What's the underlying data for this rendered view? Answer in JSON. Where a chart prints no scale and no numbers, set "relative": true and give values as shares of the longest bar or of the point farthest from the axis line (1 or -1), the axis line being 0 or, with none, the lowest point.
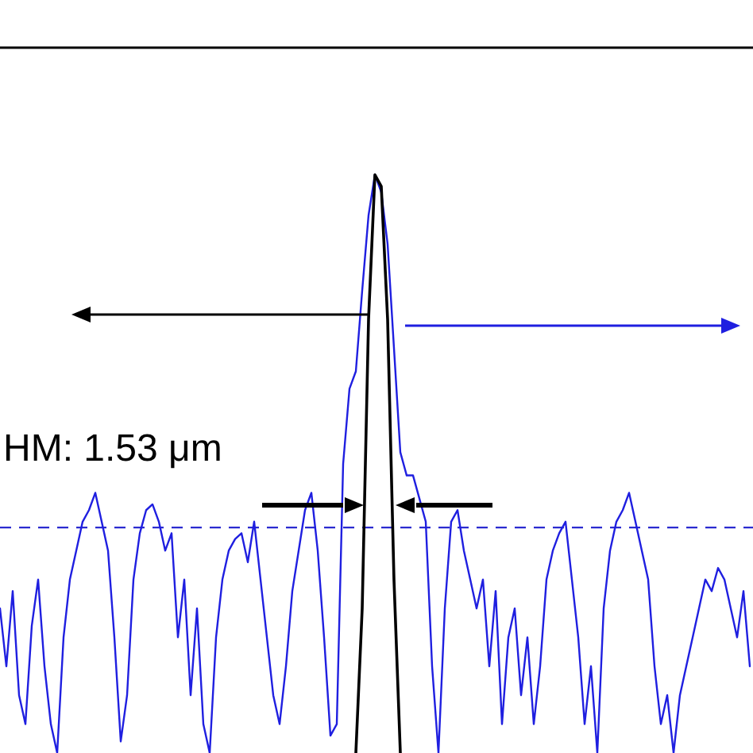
{
  "chart_data": {
    "type": "line",
    "relative": true,
    "annotations": [
      "HM: 1.53 μm"
    ],
    "categories": [
      null,
      null,
      null,
      null,
      null,
      null,
      null,
      null,
      null,
      null,
      null,
      null,
      null,
      null,
      null,
      null,
      null,
      null,
      null,
      null,
      null,
      null,
      null,
      null,
      null,
      null,
      null,
      null,
      null,
      null,
      null,
      null,
      null,
      null,
      null,
      null,
      null,
      null,
      null,
      null,
      null,
      null,
      null,
      null,
      null,
      null,
      null,
      null,
      null,
      null,
      null,
      null,
      null,
      null,
      null,
      null,
      null,
      null,
      null,
      null,
      null,
      null,
      null,
      null,
      null,
      null,
      null,
      null,
      null,
      null,
      null,
      null,
      null,
      null,
      null,
      null,
      null,
      null,
      null,
      null,
      null,
      null,
      null,
      null,
      null,
      null,
      null,
      null,
      null,
      null,
      null,
      null,
      null,
      null,
      null,
      null,
      null,
      null,
      null,
      null,
      null,
      null,
      null,
      null,
      null,
      null,
      null,
      null,
      null,
      null,
      null,
      null,
      null,
      null,
      null,
      null,
      null,
      null,
      null
    ],
    "ref_lines": [
      {
        "axis": "y",
        "value": 0.39,
        "color": "#2b2bd0",
        "line_style": "dashed"
      }
    ],
    "series": [
      {
        "color": "#1f1fe0",
        "values": [
          0.25,
          0.15,
          0.28,
          0.1,
          0.05,
          0.22,
          0.3,
          0.15,
          0.05,
          0,
          0.2,
          0.3,
          0.35,
          0.4,
          0.42,
          0.45,
          0.4,
          0.35,
          0.2,
          0.02,
          0.1,
          0.3,
          0.38,
          0.42,
          0.43,
          0.4,
          0.35,
          0.38,
          0.2,
          0.3,
          0.1,
          0.25,
          0.05,
          0,
          0.2,
          0.3,
          0.35,
          0.37,
          0.38,
          0.33,
          0.4,
          0.3,
          0.2,
          0.1,
          0.05,
          0.15,
          0.28,
          0.35,
          0.42,
          0.45,
          0.35,
          0.2,
          0.03,
          0.05,
          0.5,
          0.63,
          0.66,
          0.8,
          0.93,
          1,
          0.97,
          0.88,
          0.7,
          0.52,
          0.48,
          0.48,
          0.44,
          0.4,
          0.15,
          0,
          0.25,
          0.4,
          0.42,
          0.35,
          0.3,
          0.25,
          0.3,
          0.15,
          0.28,
          0.05,
          0.2,
          0.25,
          0.1,
          0.2,
          0.05,
          0.15,
          0.3,
          0.35,
          0.38,
          0.4,
          0.3,
          0.2,
          0.05,
          0.15,
          0,
          0.25,
          0.35,
          0.4,
          0.42,
          0.45,
          0.4,
          0.35,
          0.3,
          0.15,
          0.05,
          0.1,
          0,
          0.1,
          0.15,
          0.2,
          0.25,
          0.3,
          0.28,
          0.32,
          0.3,
          0.25,
          0.2,
          0.28,
          0.15
        ]
      },
      {
        "color": "#000000",
        "values": [
          null,
          null,
          null,
          null,
          null,
          null,
          null,
          null,
          null,
          null,
          null,
          null,
          null,
          null,
          null,
          null,
          null,
          null,
          null,
          null,
          null,
          null,
          null,
          null,
          null,
          null,
          null,
          null,
          null,
          null,
          null,
          null,
          null,
          null,
          null,
          null,
          null,
          null,
          null,
          null,
          null,
          null,
          null,
          null,
          null,
          null,
          null,
          null,
          null,
          null,
          null,
          null,
          null,
          null,
          null,
          null,
          0,
          0.25,
          0.75,
          1,
          0.98,
          0.75,
          0.3,
          0,
          null,
          null,
          null,
          null,
          null,
          null,
          null,
          null,
          null,
          null,
          null,
          null,
          null,
          null,
          null,
          null,
          null,
          null,
          null,
          null,
          null,
          null,
          null,
          null,
          null,
          null,
          null,
          null,
          null,
          null,
          null,
          null,
          null,
          null,
          null,
          null,
          null,
          null,
          null,
          null,
          null,
          null,
          null,
          null,
          null,
          null,
          null,
          null,
          null,
          null,
          null,
          null,
          null,
          null,
          null
        ]
      }
    ]
  }
}
